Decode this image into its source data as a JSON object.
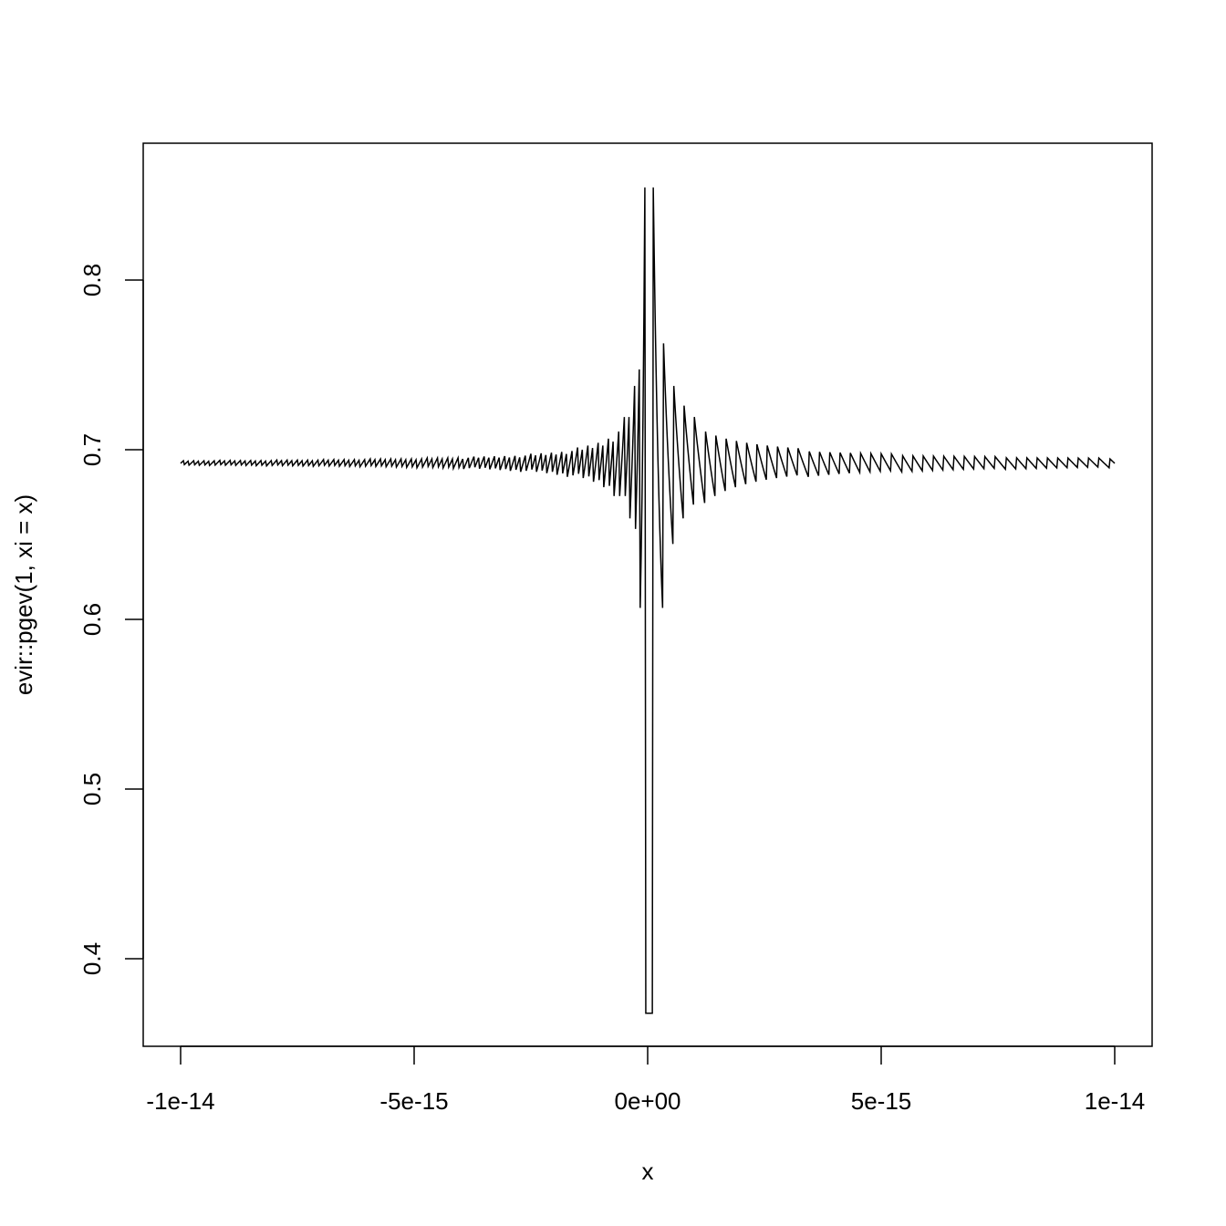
{
  "chart_data": {
    "type": "line",
    "title": "",
    "xlabel": "x",
    "ylabel": "evir::pgev(1, xi = x)",
    "xlim": [
      -1e-14,
      1e-14
    ],
    "ylim": [
      0.35,
      0.88
    ],
    "x_ticks": [
      -1e-14,
      -5e-15,
      0,
      5e-15,
      1e-14
    ],
    "x_tick_labels": [
      "-1e-14",
      "-5e-15",
      "0e+00",
      "5e-15",
      "1e-14"
    ],
    "y_ticks": [
      0.4,
      0.5,
      0.6,
      0.7,
      0.8
    ],
    "y_tick_labels": [
      "0.4",
      "0.5",
      "0.6",
      "0.7",
      "0.8"
    ],
    "series": [
      {
        "function": "pgev(1, xi = x) = exp(-(1 + x)^(-1/x))",
        "x_from": -1e-14,
        "x_to": 1e-14,
        "n": 1001,
        "color": "#000000"
      }
    ],
    "grid": false,
    "legend": "none"
  }
}
